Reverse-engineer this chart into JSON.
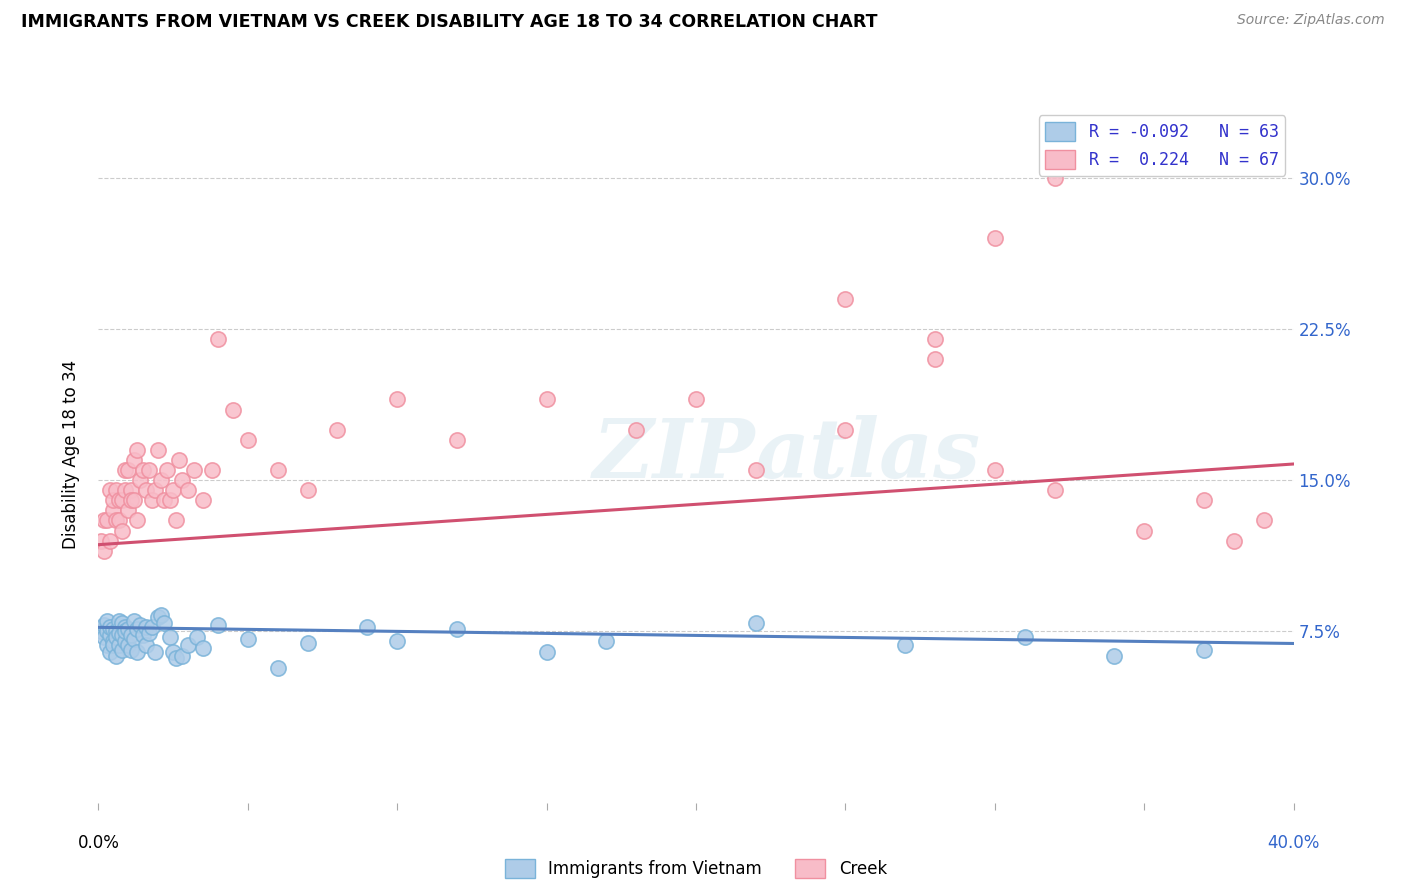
{
  "title": "IMMIGRANTS FROM VIETNAM VS CREEK DISABILITY AGE 18 TO 34 CORRELATION CHART",
  "source": "Source: ZipAtlas.com",
  "ylabel": "Disability Age 18 to 34",
  "yticks": [
    "7.5%",
    "15.0%",
    "22.5%",
    "30.0%"
  ],
  "ytick_vals": [
    0.075,
    0.15,
    0.225,
    0.3
  ],
  "xlim": [
    0.0,
    0.4
  ],
  "ylim": [
    -0.01,
    0.335
  ],
  "watermark": "ZIPatlas",
  "blue_color": "#7ab3d9",
  "pink_color": "#f090a0",
  "blue_fill": "#aecce8",
  "pink_fill": "#f8bcc8",
  "blue_line_color": "#5580c0",
  "pink_line_color": "#d05070",
  "blue_scatter_x": [
    0.001,
    0.002,
    0.002,
    0.003,
    0.003,
    0.003,
    0.004,
    0.004,
    0.004,
    0.005,
    0.005,
    0.005,
    0.006,
    0.006,
    0.006,
    0.007,
    0.007,
    0.007,
    0.008,
    0.008,
    0.008,
    0.009,
    0.009,
    0.009,
    0.01,
    0.01,
    0.011,
    0.011,
    0.012,
    0.012,
    0.013,
    0.013,
    0.014,
    0.015,
    0.016,
    0.016,
    0.017,
    0.018,
    0.019,
    0.02,
    0.021,
    0.022,
    0.024,
    0.025,
    0.026,
    0.028,
    0.03,
    0.033,
    0.035,
    0.04,
    0.05,
    0.06,
    0.07,
    0.09,
    0.1,
    0.12,
    0.15,
    0.17,
    0.22,
    0.27,
    0.31,
    0.34,
    0.37
  ],
  "blue_scatter_y": [
    0.075,
    0.072,
    0.078,
    0.068,
    0.075,
    0.08,
    0.065,
    0.073,
    0.077,
    0.07,
    0.076,
    0.068,
    0.075,
    0.063,
    0.072,
    0.08,
    0.068,
    0.074,
    0.079,
    0.066,
    0.073,
    0.077,
    0.07,
    0.075,
    0.068,
    0.076,
    0.073,
    0.066,
    0.08,
    0.071,
    0.076,
    0.065,
    0.078,
    0.073,
    0.068,
    0.077,
    0.074,
    0.077,
    0.065,
    0.082,
    0.083,
    0.079,
    0.072,
    0.065,
    0.062,
    0.063,
    0.068,
    0.072,
    0.067,
    0.078,
    0.071,
    0.057,
    0.069,
    0.077,
    0.07,
    0.076,
    0.065,
    0.07,
    0.079,
    0.068,
    0.072,
    0.063,
    0.066
  ],
  "pink_scatter_x": [
    0.001,
    0.002,
    0.002,
    0.003,
    0.004,
    0.004,
    0.005,
    0.005,
    0.006,
    0.006,
    0.007,
    0.007,
    0.008,
    0.008,
    0.009,
    0.009,
    0.01,
    0.01,
    0.011,
    0.011,
    0.012,
    0.012,
    0.013,
    0.013,
    0.014,
    0.015,
    0.016,
    0.017,
    0.018,
    0.019,
    0.02,
    0.021,
    0.022,
    0.023,
    0.024,
    0.025,
    0.026,
    0.027,
    0.028,
    0.03,
    0.032,
    0.035,
    0.038,
    0.04,
    0.045,
    0.05,
    0.06,
    0.07,
    0.08,
    0.1,
    0.12,
    0.15,
    0.18,
    0.2,
    0.22,
    0.25,
    0.28,
    0.3,
    0.32,
    0.35,
    0.37,
    0.38,
    0.39,
    0.25,
    0.28,
    0.3,
    0.32
  ],
  "pink_scatter_y": [
    0.12,
    0.115,
    0.13,
    0.13,
    0.12,
    0.145,
    0.135,
    0.14,
    0.13,
    0.145,
    0.14,
    0.13,
    0.125,
    0.14,
    0.145,
    0.155,
    0.135,
    0.155,
    0.145,
    0.14,
    0.16,
    0.14,
    0.13,
    0.165,
    0.15,
    0.155,
    0.145,
    0.155,
    0.14,
    0.145,
    0.165,
    0.15,
    0.14,
    0.155,
    0.14,
    0.145,
    0.13,
    0.16,
    0.15,
    0.145,
    0.155,
    0.14,
    0.155,
    0.22,
    0.185,
    0.17,
    0.155,
    0.145,
    0.175,
    0.19,
    0.17,
    0.19,
    0.175,
    0.19,
    0.155,
    0.24,
    0.21,
    0.155,
    0.145,
    0.125,
    0.14,
    0.12,
    0.13,
    0.175,
    0.22,
    0.27,
    0.3
  ],
  "blue_trend_x": [
    0.0,
    0.4
  ],
  "blue_trend_y": [
    0.077,
    0.069
  ],
  "pink_trend_x": [
    0.0,
    0.4
  ],
  "pink_trend_y": [
    0.118,
    0.158
  ],
  "grid_color": "#cccccc",
  "bg_color": "#ffffff",
  "legend1_r_blue": "R = -0.092",
  "legend1_n_blue": "N = 63",
  "legend1_r_pink": "R =  0.224",
  "legend1_n_pink": "N = 67",
  "legend2_blue": "Immigrants from Vietnam",
  "legend2_pink": "Creek"
}
